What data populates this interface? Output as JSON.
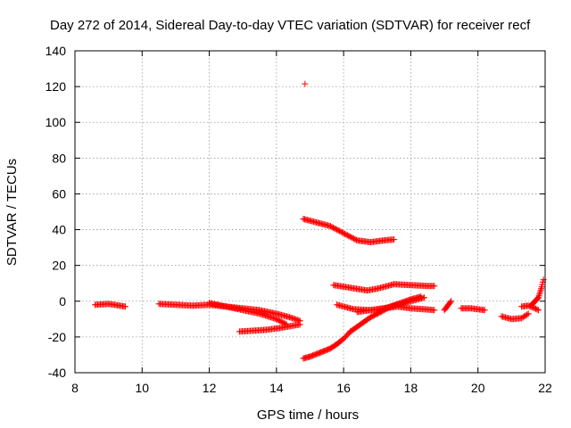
{
  "chart_data": {
    "type": "scatter",
    "title": "Day 272 of 2014, Sidereal Day-to-day VTEC variation (SDTVAR) for receiver recf",
    "xlabel": "GPS time / hours",
    "ylabel": "SDTVAR / TECUs",
    "xlim": [
      8,
      22
    ],
    "ylim": [
      -40,
      140
    ],
    "xticks": [
      8,
      10,
      12,
      14,
      16,
      18,
      20,
      22
    ],
    "yticks": [
      -40,
      -20,
      0,
      20,
      40,
      60,
      80,
      100,
      120,
      140
    ],
    "grid": true,
    "marker": "+",
    "color": "#ff0000",
    "arcs": [
      {
        "x": [
          8.6,
          9.0,
          9.5
        ],
        "y": [
          -2,
          -1.5,
          -3
        ]
      },
      {
        "x": [
          10.5,
          11.0,
          11.5,
          12.0,
          12.5,
          13.0,
          13.5,
          14.0,
          14.3
        ],
        "y": [
          -1.5,
          -2,
          -2.5,
          -2,
          -3,
          -5,
          -7,
          -10,
          -13
        ]
      },
      {
        "x": [
          12.0,
          12.5,
          13.0,
          13.5,
          14.0,
          14.4,
          14.7
        ],
        "y": [
          -1,
          -3,
          -4,
          -5,
          -7,
          -9,
          -11
        ]
      },
      {
        "x": [
          12.9,
          13.3,
          13.7,
          14.1,
          14.4,
          14.7
        ],
        "y": [
          -17,
          -16.5,
          -16,
          -15,
          -14,
          -13
        ]
      },
      {
        "x": [
          14.8,
          15.0,
          15.2,
          15.4,
          15.6,
          15.8,
          16.0,
          16.2
        ],
        "y": [
          -32,
          -31,
          -29.5,
          -28,
          -26.5,
          -24,
          -21,
          -17
        ]
      },
      {
        "x": [
          16.2,
          16.5,
          16.8,
          17.1,
          17.4,
          17.7,
          18.0,
          18.3
        ],
        "y": [
          -17,
          -13,
          -9,
          -6,
          -3,
          -1,
          1,
          2.5
        ]
      },
      {
        "x": [
          14.8,
          15.2,
          15.6,
          16.0,
          16.4,
          16.8,
          17.2,
          17.5
        ],
        "y": [
          46,
          44,
          42,
          38,
          34,
          33,
          34,
          34.5
        ]
      },
      {
        "x": [
          15.7,
          16.2,
          16.7,
          17.0,
          17.5,
          18.0,
          18.5,
          18.7
        ],
        "y": [
          9,
          7.5,
          6,
          7,
          9.5,
          9,
          8.5,
          8.5
        ]
      },
      {
        "x": [
          15.8,
          16.3,
          16.8,
          17.2,
          17.6,
          18.0,
          18.4,
          18.7
        ],
        "y": [
          -2,
          -4.5,
          -5,
          -4,
          -3,
          -4,
          -4.5,
          -5
        ]
      },
      {
        "x": [
          16.4,
          16.8,
          17.2,
          17.6,
          18.0,
          18.4
        ],
        "y": [
          -6,
          -5,
          -4,
          -2,
          0,
          2
        ]
      },
      {
        "x": [
          19.0,
          19.2
        ],
        "y": [
          -5,
          0
        ]
      },
      {
        "x": [
          19.5,
          19.8,
          20.2
        ],
        "y": [
          -4,
          -4,
          -5
        ]
      },
      {
        "x": [
          20.7,
          21.0,
          21.3,
          21.5
        ],
        "y": [
          -8.5,
          -10,
          -9.5,
          -7
        ]
      },
      {
        "x": [
          21.3,
          21.5,
          21.7,
          21.8
        ],
        "y": [
          -3,
          -2.5,
          -4,
          -5
        ]
      },
      {
        "x": [
          21.6,
          21.7,
          21.8,
          21.85,
          21.9,
          21.95
        ],
        "y": [
          -2,
          0,
          2,
          5,
          8,
          12
        ]
      }
    ],
    "outliers": [
      {
        "x": 14.85,
        "y": 121.5
      }
    ]
  }
}
